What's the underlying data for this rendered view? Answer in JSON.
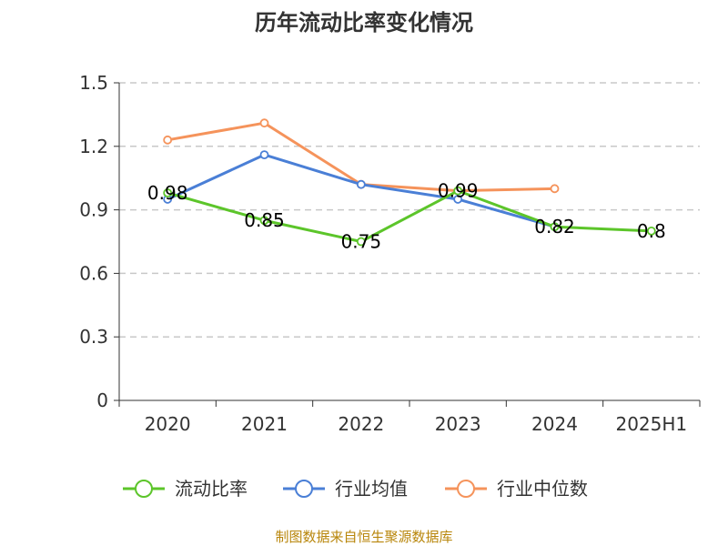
{
  "chart_data": {
    "type": "line",
    "title": "历年流动比率变化情况",
    "categories": [
      "2020",
      "2021",
      "2022",
      "2023",
      "2024",
      "2025H1"
    ],
    "ylim": [
      0,
      1.5
    ],
    "yticks": [
      0,
      0.3,
      0.6,
      0.9,
      1.2,
      1.5
    ],
    "ytick_labels": [
      "0",
      "0.3",
      "0.6",
      "0.9",
      "1.2",
      "1.5"
    ],
    "grid": true,
    "legend_position": "bottom",
    "series": [
      {
        "name": "流动比率",
        "color": "#5cc52a",
        "values": [
          0.98,
          0.85,
          0.75,
          0.99,
          0.82,
          0.8
        ],
        "labels": [
          "0.98",
          "0.85",
          "0.75",
          "0.99",
          "0.82",
          "0.8"
        ]
      },
      {
        "name": "行业均值",
        "color": "#4a7fd6",
        "values": [
          0.95,
          1.16,
          1.02,
          0.95,
          0.82,
          null
        ]
      },
      {
        "name": "行业中位数",
        "color": "#f5935b",
        "values": [
          1.23,
          1.31,
          1.02,
          0.99,
          1.0,
          null
        ]
      }
    ]
  },
  "footer": {
    "source": "制图数据来自恒生聚源数据库"
  }
}
